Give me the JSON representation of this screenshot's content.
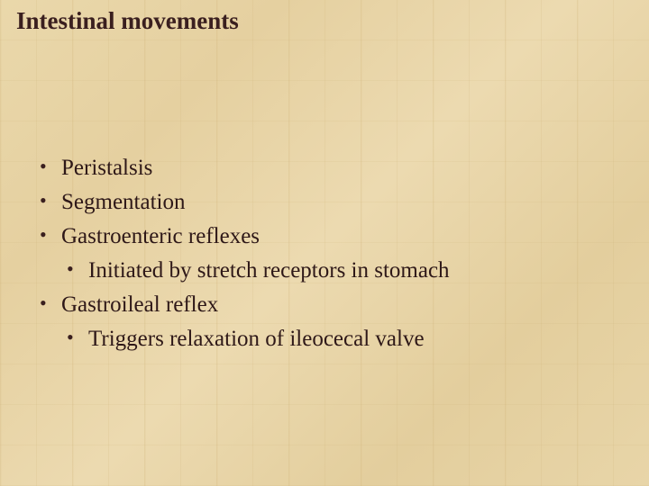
{
  "slide": {
    "title": "Intestinal movements",
    "background_color": "#e8d5a8",
    "text_color": "#3a1a1a",
    "title_fontsize": 27,
    "body_fontsize": 25,
    "font_family": "Georgia, serif",
    "bullets": [
      {
        "level": 1,
        "text": "Peristalsis"
      },
      {
        "level": 1,
        "text": "Segmentation"
      },
      {
        "level": 1,
        "text": "Gastroenteric reflexes"
      },
      {
        "level": 2,
        "text": "Initiated by stretch receptors in stomach"
      },
      {
        "level": 1,
        "text": "Gastroileal reflex"
      },
      {
        "level": 2,
        "text": "Triggers relaxation of ileocecal valve"
      }
    ]
  }
}
